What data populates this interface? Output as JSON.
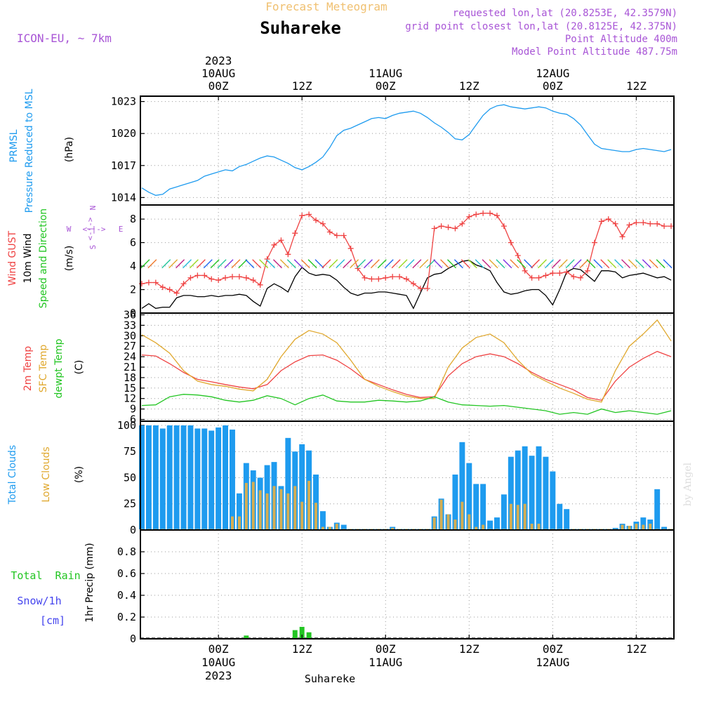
{
  "header": {
    "product": "Forecast Meteogram",
    "location": "Suhareke",
    "model": "ICON-EU, ~ 7km",
    "requested": "requested lon,lat (20.8253E, 42.3579N)",
    "gridpoint": "grid point closest lon,lat (20.8125E, 42.375N)",
    "point_alt": "Point Altitude 400m",
    "model_alt": "Model Point Altitude 487.75m",
    "credit": "by Angel",
    "footer": "Suhareke"
  },
  "colors": {
    "pressure": "#1e9bef",
    "gust": "#ef4343",
    "wind": "#000000",
    "temp2m": "#ef4343",
    "sfc": "#e0a82e",
    "dewpt": "#22c522",
    "total": "#1e9bef",
    "low": "#d4ad52",
    "rain": "#22c522",
    "snow": "#4444ee",
    "header": "#a855d6",
    "title_orange": "#f0c070"
  },
  "time_axis": {
    "top": [
      {
        "label": "00Z",
        "date": "10AUG",
        "year": "2023"
      },
      {
        "label": "12Z"
      },
      {
        "label": "00Z",
        "date": "11AUG"
      },
      {
        "label": "12Z"
      },
      {
        "label": "00Z",
        "date": "12AUG"
      },
      {
        "label": "12Z"
      }
    ],
    "tick_hours": [
      0,
      12,
      24,
      36,
      48,
      60
    ],
    "start_hour": -11,
    "end_hour": 65
  },
  "chart_data": [
    {
      "type": "line",
      "title": "PRMSL Pressure Reduced to MSL",
      "ylabel": "(hPa)",
      "ylim": [
        1013.3,
        1023.5
      ],
      "yticks": [
        1014,
        1017,
        1020,
        1023
      ],
      "series": [
        {
          "name": "PRMSL",
          "x": [
            -11,
            -10,
            -9,
            -8,
            -7,
            -6,
            -5,
            -4,
            -3,
            -2,
            -1,
            0,
            1,
            2,
            3,
            4,
            5,
            6,
            7,
            8,
            9,
            10,
            11,
            12,
            13,
            14,
            15,
            16,
            17,
            18,
            19,
            20,
            21,
            22,
            23,
            24,
            25,
            26,
            27,
            28,
            29,
            30,
            31,
            32,
            33,
            34,
            35,
            36,
            37,
            38,
            39,
            40,
            41,
            42,
            43,
            44,
            45,
            46,
            47,
            48,
            49,
            50,
            51,
            52,
            53,
            54,
            55,
            56,
            57,
            58,
            59,
            60,
            61,
            62,
            63,
            64,
            65
          ],
          "values": [
            1014.9,
            1014.5,
            1014.2,
            1014.3,
            1014.8,
            1015.0,
            1015.2,
            1015.4,
            1015.6,
            1016.0,
            1016.2,
            1016.4,
            1016.6,
            1016.5,
            1016.9,
            1017.1,
            1017.4,
            1017.7,
            1017.9,
            1017.8,
            1017.5,
            1017.2,
            1016.8,
            1016.6,
            1016.9,
            1017.3,
            1017.8,
            1018.7,
            1019.8,
            1020.3,
            1020.5,
            1020.8,
            1021.1,
            1021.4,
            1021.5,
            1021.4,
            1021.7,
            1021.9,
            1022.0,
            1022.1,
            1021.9,
            1021.5,
            1021.0,
            1020.6,
            1020.1,
            1019.5,
            1019.4,
            1019.9,
            1020.8,
            1021.7,
            1022.3,
            1022.6,
            1022.7,
            1022.5,
            1022.4,
            1022.3,
            1022.4,
            1022.5,
            1022.4,
            1022.1,
            1021.9,
            1021.8,
            1021.4,
            1020.8,
            1019.9,
            1019.0,
            1018.6,
            1018.5,
            1018.4,
            1018.3,
            1018.3,
            1018.5,
            1018.6,
            1018.5,
            1018.4,
            1018.3,
            1018.5
          ]
        }
      ]
    },
    {
      "type": "line",
      "title": "Wind GUST / 10m Wind Speed and Direction",
      "ylabel": "(m/s)",
      "ylim": [
        0,
        9.2
      ],
      "yticks": [
        0,
        2,
        4,
        6,
        8
      ],
      "compass": {
        "n": "N",
        "s": "S",
        "e": "E",
        "w": "W"
      },
      "series": [
        {
          "name": "Wind GUST",
          "x": [
            -11,
            -10,
            -9,
            -8,
            -7,
            -6,
            -5,
            -4,
            -3,
            -2,
            -1,
            0,
            1,
            2,
            3,
            4,
            5,
            6,
            7,
            8,
            9,
            10,
            11,
            12,
            13,
            14,
            15,
            16,
            17,
            18,
            19,
            20,
            21,
            22,
            23,
            24,
            25,
            26,
            27,
            28,
            29,
            30,
            31,
            32,
            33,
            34,
            35,
            36,
            37,
            38,
            39,
            40,
            41,
            42,
            43,
            44,
            45,
            46,
            47,
            48,
            49,
            50,
            51,
            52,
            53,
            54,
            55,
            56,
            57,
            58,
            59,
            60,
            61,
            62,
            63,
            64,
            65
          ],
          "values": [
            2.5,
            2.6,
            2.6,
            2.2,
            2.0,
            1.7,
            2.5,
            3.0,
            3.2,
            3.2,
            2.9,
            2.8,
            3.0,
            3.1,
            3.1,
            3.0,
            2.8,
            2.4,
            4.6,
            5.8,
            6.2,
            5.0,
            6.8,
            8.3,
            8.4,
            7.9,
            7.6,
            6.9,
            6.6,
            6.6,
            5.5,
            3.8,
            3.0,
            2.9,
            2.9,
            3.0,
            3.1,
            3.1,
            2.9,
            2.5,
            2.1,
            2.1,
            7.2,
            7.4,
            7.3,
            7.2,
            7.6,
            8.2,
            8.4,
            8.5,
            8.5,
            8.3,
            7.4,
            6.0,
            4.9,
            3.6,
            3.0,
            3.0,
            3.2,
            3.4,
            3.4,
            3.5,
            3.1,
            3.0,
            3.6,
            6.0,
            7.8,
            8.0,
            7.6,
            6.5,
            7.5,
            7.7,
            7.7,
            7.6,
            7.6,
            7.4,
            7.4
          ]
        },
        {
          "name": "10m Wind",
          "x": [
            -11,
            -10,
            -9,
            -8,
            -7,
            -6,
            -5,
            -4,
            -3,
            -2,
            -1,
            0,
            1,
            2,
            3,
            4,
            5,
            6,
            7,
            8,
            9,
            10,
            11,
            12,
            13,
            14,
            15,
            16,
            17,
            18,
            19,
            20,
            21,
            22,
            23,
            24,
            25,
            26,
            27,
            28,
            29,
            30,
            31,
            32,
            33,
            34,
            35,
            36,
            37,
            38,
            39,
            40,
            41,
            42,
            43,
            44,
            45,
            46,
            47,
            48,
            49,
            50,
            51,
            52,
            53,
            54,
            55,
            56,
            57,
            58,
            59,
            60,
            61,
            62,
            63,
            64,
            65
          ],
          "values": [
            0.4,
            0.8,
            0.4,
            0.5,
            0.5,
            1.3,
            1.5,
            1.5,
            1.4,
            1.4,
            1.5,
            1.4,
            1.5,
            1.5,
            1.6,
            1.5,
            1.0,
            0.6,
            2.1,
            2.5,
            2.2,
            1.8,
            3.1,
            3.9,
            3.4,
            3.2,
            3.3,
            3.2,
            2.8,
            2.2,
            1.7,
            1.5,
            1.7,
            1.7,
            1.8,
            1.8,
            1.7,
            1.6,
            1.5,
            0.4,
            1.7,
            3.0,
            3.3,
            3.4,
            3.8,
            4.1,
            4.4,
            4.5,
            4.1,
            3.9,
            3.6,
            2.6,
            1.8,
            1.6,
            1.7,
            1.9,
            2.0,
            2.0,
            1.5,
            0.7,
            2.0,
            3.5,
            3.8,
            3.7,
            3.2,
            2.7,
            3.6,
            3.6,
            3.5,
            3.0,
            3.2,
            3.3,
            3.4,
            3.2,
            3.0,
            3.1,
            2.8
          ]
        }
      ]
    },
    {
      "type": "line",
      "title": "2m Temp / SFC Temp / dewpt Temp",
      "ylabel": "(C)",
      "ylim": [
        5.5,
        36.5
      ],
      "yticks": [
        6,
        9,
        12,
        15,
        18,
        21,
        24,
        27,
        30,
        33,
        36
      ],
      "series": [
        {
          "name": "2m Temp",
          "x": [
            -11,
            -9,
            -7,
            -5,
            -3,
            -1,
            1,
            3,
            5,
            7,
            9,
            11,
            13,
            15,
            17,
            19,
            21,
            23,
            25,
            27,
            29,
            31,
            33,
            35,
            37,
            39,
            41,
            43,
            45,
            47,
            49,
            51,
            53,
            55,
            57,
            59,
            61,
            63,
            65
          ],
          "values": [
            24.5,
            24.2,
            22.0,
            19.5,
            17.5,
            16.8,
            16.0,
            15.3,
            14.8,
            16.0,
            20.0,
            22.5,
            24.3,
            24.5,
            23.0,
            20.5,
            17.5,
            16.0,
            14.5,
            13.2,
            12.3,
            12.5,
            18.5,
            22.0,
            24.0,
            24.8,
            24.0,
            22.0,
            19.5,
            17.5,
            16.0,
            14.5,
            12.3,
            11.5,
            17.0,
            21.0,
            23.5,
            25.5,
            24.0
          ]
        },
        {
          "name": "SFC Temp",
          "x": [
            -11,
            -9,
            -7,
            -5,
            -3,
            -1,
            1,
            3,
            5,
            7,
            9,
            11,
            13,
            15,
            17,
            19,
            21,
            23,
            25,
            27,
            29,
            31,
            33,
            35,
            37,
            39,
            41,
            43,
            45,
            47,
            49,
            51,
            53,
            55,
            57,
            59,
            61,
            63,
            65
          ],
          "values": [
            30.3,
            28.0,
            25.0,
            20.0,
            17.0,
            16.0,
            15.5,
            14.7,
            14.2,
            17.5,
            24.0,
            29.0,
            31.5,
            30.5,
            28.0,
            23.0,
            17.5,
            15.5,
            14.0,
            12.7,
            12.0,
            12.0,
            21.0,
            26.5,
            29.5,
            30.5,
            28.0,
            23.0,
            19.0,
            17.0,
            15.0,
            13.5,
            11.8,
            11.0,
            20.0,
            27.0,
            30.5,
            34.5,
            28.5
          ]
        },
        {
          "name": "dewpt Temp",
          "x": [
            -11,
            -9,
            -7,
            -5,
            -3,
            -1,
            1,
            3,
            5,
            7,
            9,
            11,
            13,
            15,
            17,
            19,
            21,
            23,
            25,
            27,
            29,
            31,
            33,
            35,
            37,
            39,
            41,
            43,
            45,
            47,
            49,
            51,
            53,
            55,
            57,
            59,
            61,
            63,
            65
          ],
          "values": [
            10.0,
            10.2,
            12.5,
            13.2,
            13.0,
            12.5,
            11.5,
            11.0,
            11.5,
            12.8,
            12.0,
            10.2,
            12.0,
            13.0,
            11.3,
            11.0,
            11.0,
            11.5,
            11.3,
            11.0,
            11.3,
            12.5,
            11.0,
            10.2,
            10.0,
            9.8,
            10.0,
            9.5,
            9.0,
            8.5,
            7.5,
            8.0,
            7.5,
            9.0,
            8.0,
            8.5,
            8.0,
            7.5,
            8.5
          ]
        }
      ]
    },
    {
      "type": "bar",
      "title": "Total Clouds / Low Clouds",
      "ylabel": "(%)",
      "ylim": [
        0,
        104
      ],
      "yticks": [
        0,
        25,
        50,
        75,
        100
      ],
      "x": [
        -11,
        -10,
        -9,
        -8,
        -7,
        -6,
        -5,
        -4,
        -3,
        -2,
        -1,
        0,
        1,
        2,
        3,
        4,
        5,
        6,
        7,
        8,
        9,
        10,
        11,
        12,
        13,
        14,
        15,
        16,
        17,
        18,
        19,
        20,
        21,
        22,
        23,
        24,
        25,
        26,
        27,
        28,
        29,
        30,
        31,
        32,
        33,
        34,
        35,
        36,
        37,
        38,
        39,
        40,
        41,
        42,
        43,
        44,
        45,
        46,
        47,
        48,
        49,
        50,
        51,
        52,
        53,
        54,
        55,
        56,
        57,
        58,
        59,
        60,
        61,
        62,
        63,
        64,
        65
      ],
      "series": [
        {
          "name": "Total Clouds",
          "values": [
            100,
            100,
            100,
            97,
            100,
            100,
            100,
            100,
            97,
            97,
            95,
            98,
            100,
            96,
            35,
            64,
            57,
            50,
            62,
            65,
            42,
            88,
            75,
            82,
            76,
            53,
            18,
            3,
            7,
            5,
            1,
            1,
            1,
            1,
            1,
            1,
            3,
            1,
            1,
            1,
            1,
            1,
            13,
            30,
            15,
            53,
            84,
            64,
            44,
            44,
            9,
            12,
            34,
            70,
            76,
            80,
            71,
            80,
            70,
            56,
            25,
            20,
            1,
            1,
            1,
            1,
            1,
            1,
            2,
            6,
            4,
            8,
            12,
            10,
            39,
            3,
            1
          ]
        },
        {
          "name": "Low Clouds",
          "values": [
            1,
            1,
            1,
            1,
            1,
            1,
            1,
            1,
            1,
            1,
            1,
            1,
            1,
            13,
            13,
            45,
            46,
            38,
            35,
            42,
            39,
            35,
            42,
            27,
            47,
            26,
            3,
            3,
            6,
            1,
            1,
            1,
            1,
            1,
            1,
            1,
            2,
            1,
            1,
            1,
            1,
            1,
            12,
            29,
            15,
            10,
            27,
            15,
            3,
            5,
            1,
            1,
            1,
            25,
            24,
            25,
            6,
            6,
            1,
            1,
            1,
            1,
            1,
            1,
            1,
            1,
            1,
            1,
            1,
            5,
            4,
            6,
            5,
            6,
            1,
            1,
            1
          ]
        }
      ]
    },
    {
      "type": "bar",
      "title": "Total Rain / Snow/1h",
      "ylabel": "1hr Precip (mm)",
      "ylim": [
        0,
        1.0
      ],
      "yticks": [
        0,
        0.2,
        0.4,
        0.6,
        0.8
      ],
      "ytick_labels": [
        "0",
        "0.2",
        "0.4",
        "0.6",
        "0.8"
      ],
      "legend": {
        "rain": "Total  Rain",
        "snow": "Snow/1h",
        "unit": "[cm]"
      },
      "x": [
        4,
        11,
        12,
        13
      ],
      "values": [
        0.03,
        0.08,
        0.11,
        0.06
      ]
    }
  ]
}
